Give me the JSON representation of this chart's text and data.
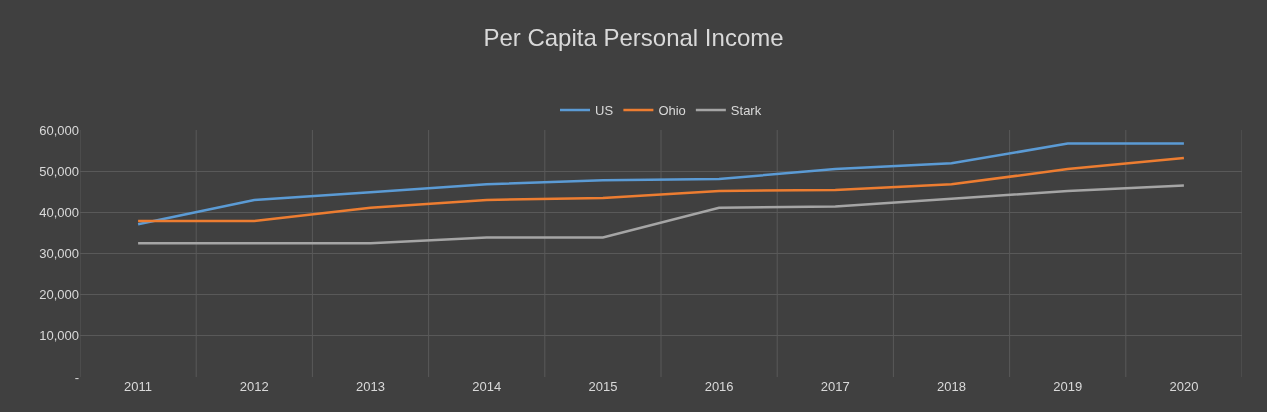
{
  "chart_data": {
    "type": "line",
    "title": "Per Capita Personal Income",
    "categories": [
      "2011",
      "2012",
      "2013",
      "2014",
      "2015",
      "2016",
      "2017",
      "2018",
      "2019",
      "2020"
    ],
    "series": [
      {
        "name": "US",
        "color": "#5b9bd5",
        "values": [
          37100,
          43000,
          44900,
          46800,
          47800,
          48100,
          50500,
          51900,
          56700,
          56700
        ]
      },
      {
        "name": "Ohio",
        "color": "#ed7d31",
        "values": [
          37900,
          37900,
          41100,
          43000,
          43500,
          45200,
          45400,
          46800,
          50500,
          53200
        ]
      },
      {
        "name": "Stark",
        "color": "#a5a5a5",
        "values": [
          32500,
          32500,
          32500,
          33900,
          33900,
          41100,
          41400,
          43300,
          45200,
          46500
        ]
      }
    ],
    "ylim": [
      0,
      60000
    ],
    "yticks": [
      {
        "value": 0,
        "label": "-"
      },
      {
        "value": 10000,
        "label": "10,000"
      },
      {
        "value": 20000,
        "label": "20,000"
      },
      {
        "value": 30000,
        "label": "30,000"
      },
      {
        "value": 40000,
        "label": "40,000"
      },
      {
        "value": 50000,
        "label": "50,000"
      },
      {
        "value": 60000,
        "label": "60,000"
      }
    ],
    "grid": true,
    "legend": "top",
    "marker": "none",
    "line_style": "solid"
  }
}
